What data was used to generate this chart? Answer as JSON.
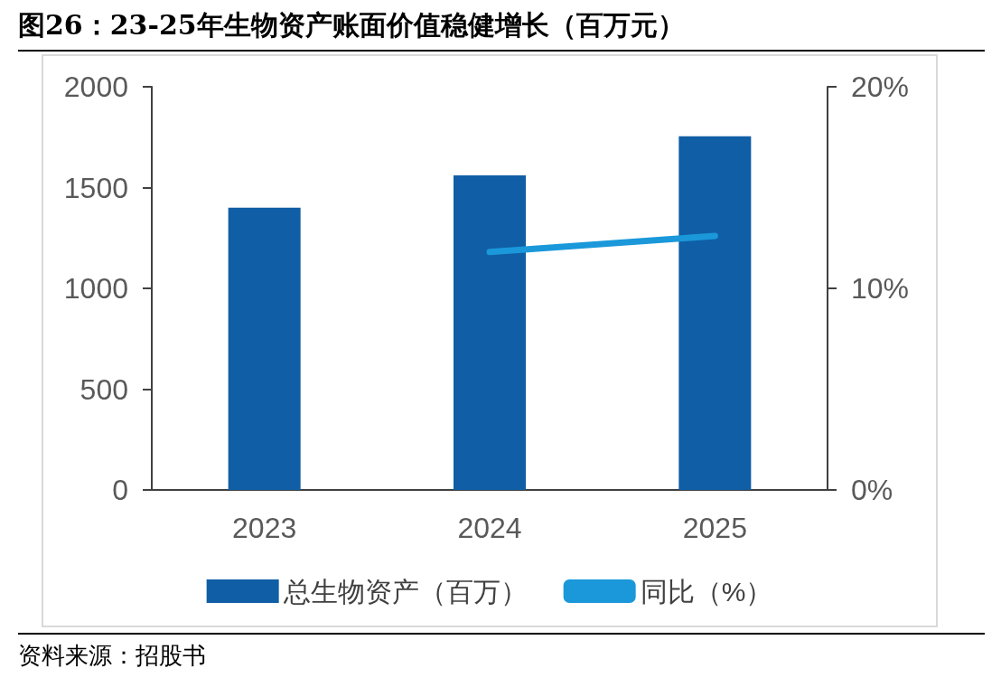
{
  "chart_data": {
    "type": "bar",
    "title": "图26：23-25年生物资产账面价值稳健增长（百万元）",
    "categories": [
      "2023",
      "2024",
      "2025"
    ],
    "series": [
      {
        "name": "总生物资产（百万）",
        "color": "#105ea5",
        "values": [
          1400,
          1560,
          1755
        ]
      },
      {
        "name": "同比（%）",
        "type": "line",
        "axis": "y2",
        "color": "#1a98da",
        "values": [
          null,
          11.8,
          12.6
        ]
      }
    ],
    "ylim": [
      0,
      2000
    ],
    "yticks": [
      0,
      500,
      1000,
      1500,
      2000
    ],
    "y2lim": [
      0,
      20
    ],
    "y2ticks": [
      {
        "value": 0,
        "label": "0%"
      },
      {
        "value": 10,
        "label": "10%"
      },
      {
        "value": 20,
        "label": "20%"
      }
    ],
    "grid": false,
    "legend": "bottom",
    "annotations": [
      "资料来源：招股书"
    ]
  }
}
